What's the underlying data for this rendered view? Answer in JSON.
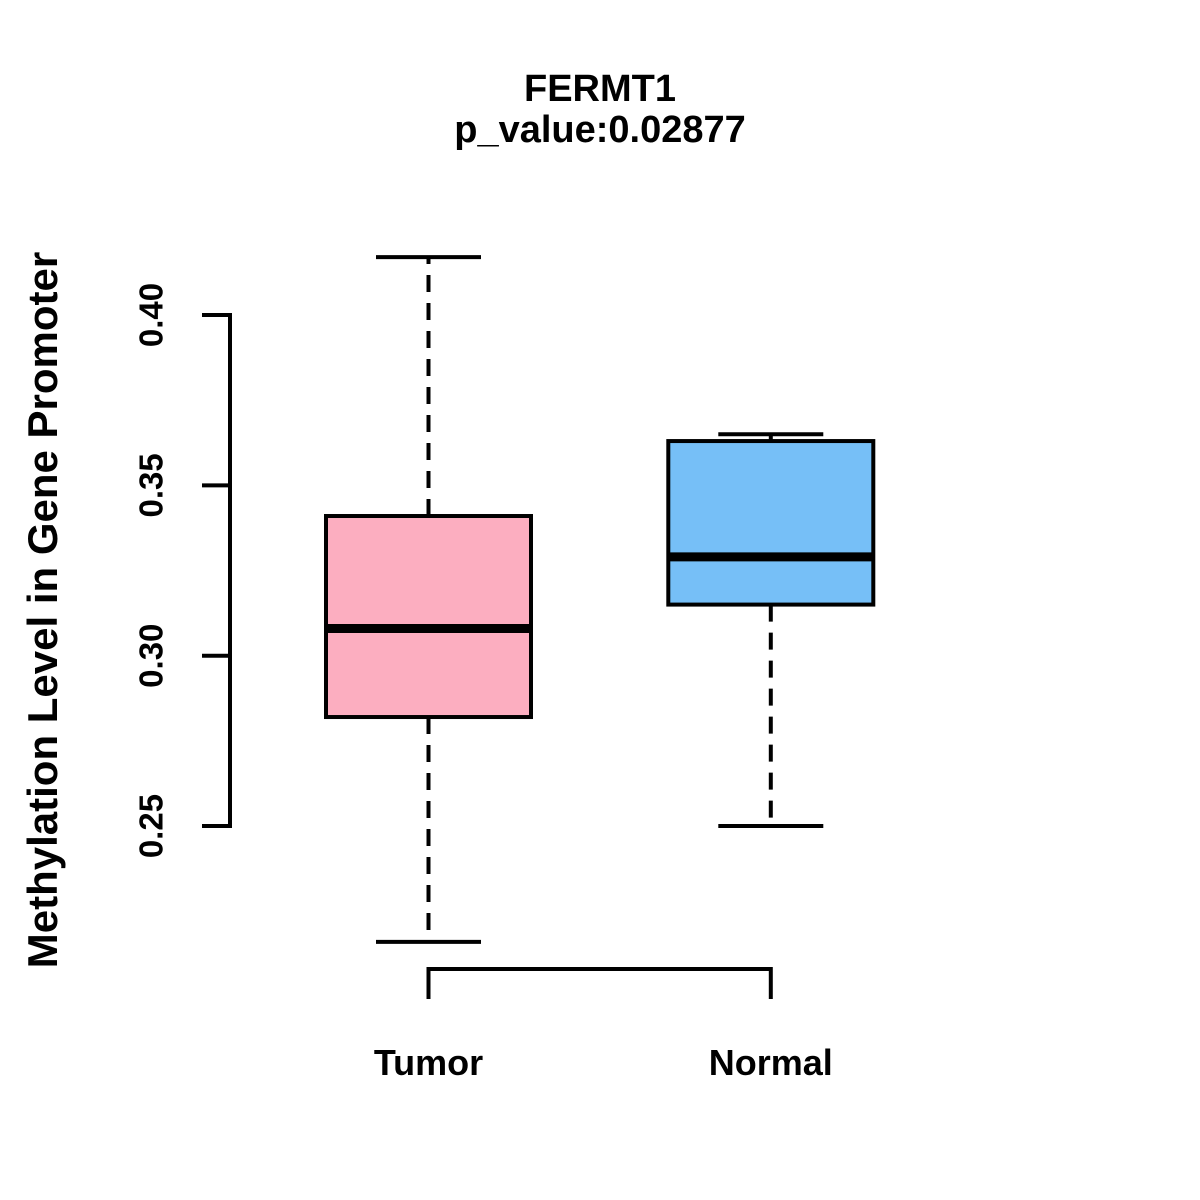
{
  "chart_data": {
    "type": "boxplot",
    "title": "FERMT1",
    "subtitle": "p_value:0.02877",
    "p_value": 0.02877,
    "ylabel": "Methylation Level in Gene Promoter",
    "xlabel": "",
    "categories": [
      "Tumor",
      "Normal"
    ],
    "yticks": [
      0.25,
      0.3,
      0.35,
      0.4
    ],
    "ytick_labels": [
      "0.25",
      "0.30",
      "0.35",
      "0.40"
    ],
    "ylim": [
      0.21,
      0.42
    ],
    "grid": false,
    "legend_position": "none",
    "whisker_style": "dashed",
    "series": [
      {
        "name": "Tumor",
        "whisker_low": 0.216,
        "q1": 0.282,
        "median": 0.308,
        "q3": 0.341,
        "whisker_high": 0.417,
        "fill_color": "#FCAEC0",
        "stroke_color": "#000000"
      },
      {
        "name": "Normal",
        "whisker_low": 0.25,
        "q1": 0.315,
        "median": 0.329,
        "q3": 0.363,
        "whisker_high": 0.365,
        "fill_color": "#76BFF7",
        "stroke_color": "#000000"
      }
    ]
  }
}
